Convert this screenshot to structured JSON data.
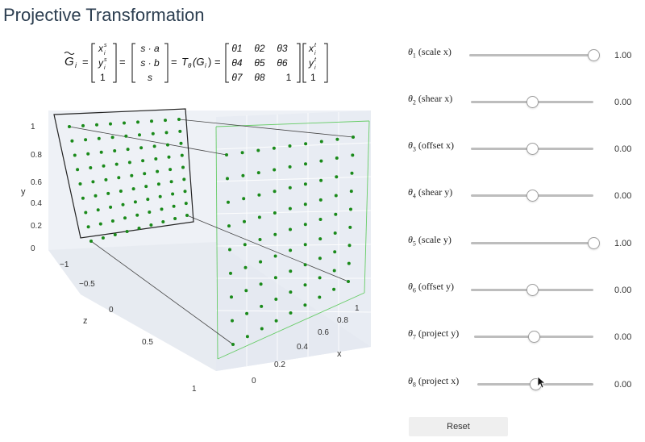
{
  "title": "Projective Transformation",
  "equation": {
    "lhs_symbol": "G",
    "lhs_sub": "i",
    "vec_src": [
      "x",
      "y",
      "1"
    ],
    "vec_src_sup": "s",
    "vec_src_sub": "i",
    "vec_mid": [
      "s · a",
      "s · b",
      "s"
    ],
    "func": "T",
    "func_sub": "θ",
    "func_arg": "(G",
    "func_arg_sub": "i",
    "matrix": [
      [
        "θ1",
        "θ2",
        "θ3"
      ],
      [
        "θ4",
        "θ5",
        "θ6"
      ],
      [
        "θ7",
        "θ8",
        "1"
      ]
    ],
    "vec_tgt": [
      "x",
      "y",
      "1"
    ],
    "vec_tgt_sup": "t",
    "vec_tgt_sub": "i"
  },
  "plot": {
    "y_axis_label": "y",
    "y_ticks": [
      "1",
      "0.8",
      "0.6",
      "0.4",
      "0.2",
      "0"
    ],
    "z_axis_label": "z",
    "z_ticks": [
      "−1",
      "−0.5",
      "0",
      "0.5",
      "1"
    ],
    "x_axis_label": "x",
    "x_ticks": [
      "0",
      "0.2",
      "0.4",
      "0.6",
      "0.8",
      "1"
    ],
    "point_color": "#1a8a1a",
    "frame_color": "#222222",
    "target_edge_color": "#66cc66"
  },
  "sliders": [
    {
      "sym": "θ",
      "sub": "1",
      "text": "(scale x)",
      "value": "1.00",
      "fraction": 1.0
    },
    {
      "sym": "θ",
      "sub": "2",
      "text": "(shear x)",
      "value": "0.00",
      "fraction": 0.5
    },
    {
      "sym": "θ",
      "sub": "3",
      "text": "(offset x)",
      "value": "0.00",
      "fraction": 0.5
    },
    {
      "sym": "θ",
      "sub": "4",
      "text": "(shear y)",
      "value": "0.00",
      "fraction": 0.5
    },
    {
      "sym": "θ",
      "sub": "5",
      "text": "(scale y)",
      "value": "1.00",
      "fraction": 1.0
    },
    {
      "sym": "θ",
      "sub": "6",
      "text": "(offset y)",
      "value": "0.00",
      "fraction": 0.5
    },
    {
      "sym": "θ",
      "sub": "7",
      "text": "(project y)",
      "value": "0.00",
      "fraction": 0.5
    },
    {
      "sym": "θ",
      "sub": "8",
      "text": "(project x)",
      "value": "0.00",
      "fraction": 0.5
    }
  ],
  "reset_label": "Reset",
  "colors": {
    "title": "#2c3e50",
    "track": "#bdbdbd",
    "button": "#efefef"
  }
}
